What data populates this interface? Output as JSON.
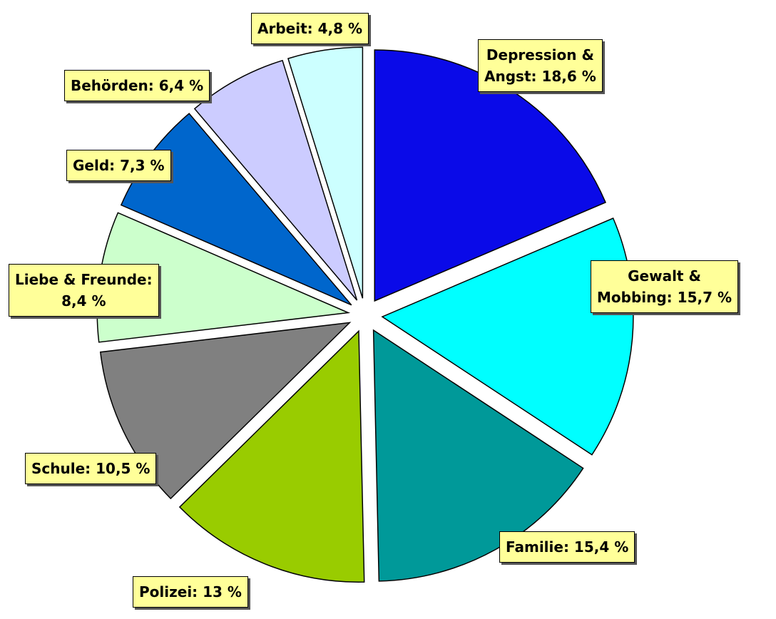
{
  "chart_data": {
    "type": "pie",
    "values": [
      18.6,
      15.7,
      15.4,
      13,
      10.5,
      8.4,
      7.3,
      6.4,
      4.8
    ],
    "value_labels": [
      "Depression &\nAngst: 18,6 %",
      "Gewalt &\nMobbing: 15,7 %",
      "Familie: 15,4 %",
      "Polizei: 13 %",
      "Schule: 10,5 %",
      "Liebe & Freunde:\n8,4 %",
      "Geld: 7,3 %",
      "Behörden: 6,4 %",
      "Arbeit: 4,8 %"
    ],
    "colors": [
      "#0a0ae8",
      "#00ffff",
      "#009999",
      "#99cc00",
      "#808080",
      "#ccffcc",
      "#0066cc",
      "#ccccff",
      "#ccffff"
    ]
  }
}
